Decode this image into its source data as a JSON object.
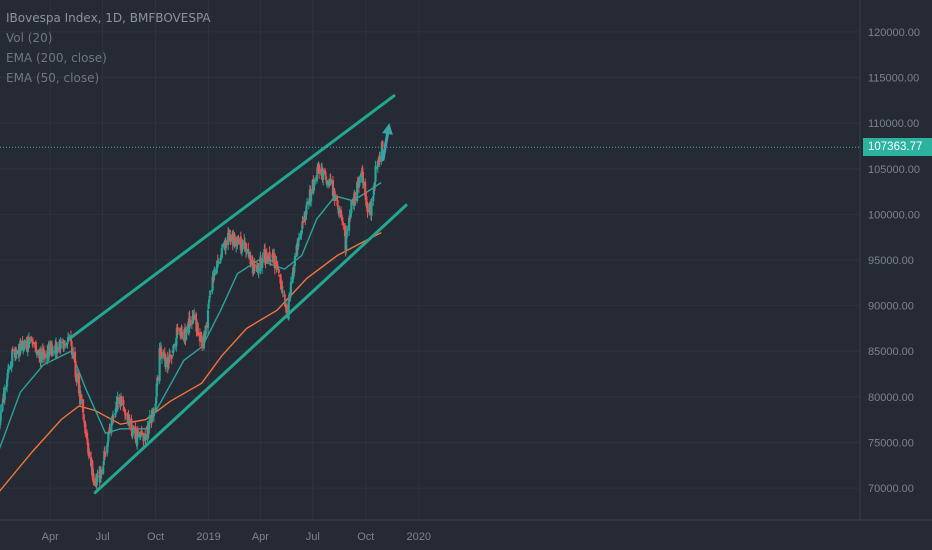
{
  "chart_data": {
    "type": "candlestick",
    "title": "IBovespa Index, 1D, BMFBOVESPA",
    "indicators": [
      "Vol (20)",
      "EMA (200, close)",
      "EMA (50, close)"
    ],
    "last_price": "107363.77",
    "y_ticks": [
      "120000.00",
      "115000.00",
      "110000.00",
      "105000.00",
      "100000.00",
      "95000.00",
      "90000.00",
      "85000.00",
      "80000.00",
      "75000.00",
      "70000.00"
    ],
    "x_ticks": [
      "Apr",
      "Jul",
      "Oct",
      "2019",
      "Apr",
      "Jul",
      "Oct",
      "2020"
    ],
    "colors": {
      "up": "#26a69a",
      "down": "#ef5350",
      "ema50": "#2aa59b",
      "ema200": "#f0763a",
      "channel": "#22a88f",
      "price_line": "#2bb3a0"
    },
    "price_path": [
      [
        "2018-01-01",
        77000
      ],
      [
        "2018-01-25",
        84500
      ],
      [
        "2018-02-22",
        86000
      ],
      [
        "2018-03-15",
        84500
      ],
      [
        "2018-04-10",
        85500
      ],
      [
        "2018-05-07",
        86000
      ],
      [
        "2018-05-20",
        81000
      ],
      [
        "2018-06-01",
        76000
      ],
      [
        "2018-06-18",
        70000
      ],
      [
        "2018-06-29",
        72000
      ],
      [
        "2018-07-13",
        76000
      ],
      [
        "2018-07-30",
        80000
      ],
      [
        "2018-08-15",
        77000
      ],
      [
        "2018-08-29",
        75500
      ],
      [
        "2018-09-14",
        76000
      ],
      [
        "2018-10-01",
        79000
      ],
      [
        "2018-10-08",
        85000
      ],
      [
        "2018-10-22",
        83500
      ],
      [
        "2018-11-08",
        87000
      ],
      [
        "2018-11-22",
        87000
      ],
      [
        "2018-12-06",
        89000
      ],
      [
        "2018-12-21",
        85500
      ],
      [
        "2019-01-10",
        93500
      ],
      [
        "2019-02-04",
        97500
      ],
      [
        "2019-02-18",
        97000
      ],
      [
        "2019-03-08",
        96500
      ],
      [
        "2019-03-22",
        93500
      ],
      [
        "2019-04-08",
        95500
      ],
      [
        "2019-04-30",
        94500
      ],
      [
        "2019-05-17",
        89500
      ],
      [
        "2019-06-07",
        97500
      ],
      [
        "2019-06-21",
        101000
      ],
      [
        "2019-07-10",
        105000
      ],
      [
        "2019-08-01",
        103500
      ],
      [
        "2019-08-20",
        99500
      ],
      [
        "2019-08-27",
        96500
      ],
      [
        "2019-09-06",
        101000
      ],
      [
        "2019-09-25",
        104500
      ],
      [
        "2019-10-04",
        101000
      ],
      [
        "2019-10-10",
        100500
      ],
      [
        "2019-10-18",
        104500
      ],
      [
        "2019-10-30",
        107400
      ]
    ],
    "ema50": [
      [
        "2018-01-01",
        74000
      ],
      [
        "2018-02-08",
        80500
      ],
      [
        "2018-03-20",
        83500
      ],
      [
        "2018-05-07",
        85000
      ],
      [
        "2018-06-01",
        81000
      ],
      [
        "2018-07-06",
        76000
      ],
      [
        "2018-08-01",
        76500
      ],
      [
        "2018-09-14",
        76500
      ],
      [
        "2018-10-15",
        80000
      ],
      [
        "2018-11-19",
        84000
      ],
      [
        "2018-12-21",
        85500
      ],
      [
        "2019-01-22",
        89500
      ],
      [
        "2019-02-20",
        93500
      ],
      [
        "2019-03-29",
        95000
      ],
      [
        "2019-05-13",
        94000
      ],
      [
        "2019-06-12",
        95500
      ],
      [
        "2019-07-08",
        99500
      ],
      [
        "2019-08-09",
        102000
      ],
      [
        "2019-09-09",
        101500
      ],
      [
        "2019-10-04",
        102500
      ],
      [
        "2019-10-28",
        103500
      ]
    ],
    "ema200": [
      [
        "2018-01-01",
        69500
      ],
      [
        "2018-03-01",
        74000
      ],
      [
        "2018-04-20",
        77500
      ],
      [
        "2018-05-21",
        79000
      ],
      [
        "2018-06-18",
        78500
      ],
      [
        "2018-08-01",
        77000
      ],
      [
        "2018-09-14",
        77500
      ],
      [
        "2018-10-26",
        79500
      ],
      [
        "2018-12-20",
        81500
      ],
      [
        "2019-01-24",
        84500
      ],
      [
        "2019-03-08",
        87500
      ],
      [
        "2019-04-30",
        89500
      ],
      [
        "2019-06-21",
        93000
      ],
      [
        "2019-08-13",
        95500
      ],
      [
        "2019-09-27",
        97000
      ],
      [
        "2019-10-28",
        98000
      ]
    ],
    "channel_upper": [
      [
        "2018-05-07",
        86500
      ],
      [
        "2019-11-19",
        113000
      ]
    ],
    "channel_lower": [
      [
        "2018-06-18",
        69500
      ],
      [
        "2019-12-10",
        101000
      ]
    ],
    "arrow": [
      [
        "2019-10-31",
        106000
      ],
      [
        "2019-11-11",
        110000
      ]
    ],
    "ylim": [
      66500,
      123500
    ]
  }
}
